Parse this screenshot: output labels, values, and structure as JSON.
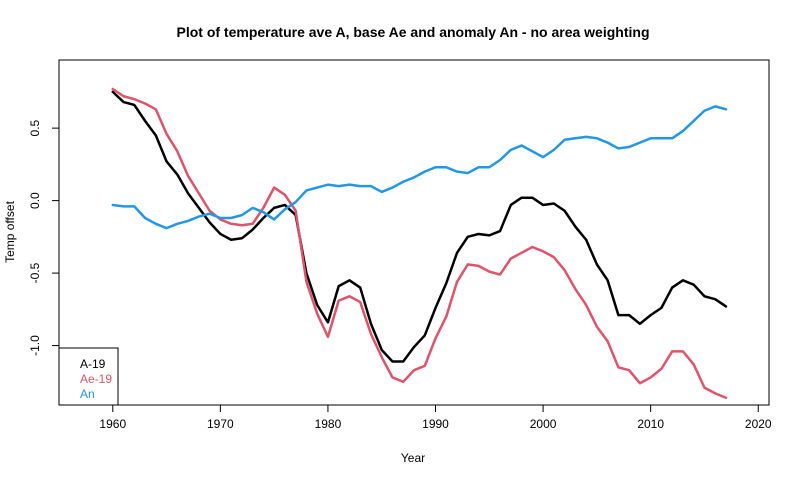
{
  "chart_data": {
    "type": "line",
    "title": "Plot of temperature ave A, base Ae and anomaly An - no area weighting",
    "xlabel": "Year",
    "ylabel": "Temp offset",
    "xlim": [
      1955,
      2021
    ],
    "ylim": [
      -1.41,
      0.97
    ],
    "x_ticks": [
      1960,
      1970,
      1980,
      1990,
      2000,
      2010,
      2020
    ],
    "y_ticks": [
      -1.0,
      -0.5,
      0.0,
      0.5
    ],
    "y_tick_labels": [
      "-1.0",
      "-0.5",
      "0.0",
      "0.5"
    ],
    "grid": false,
    "legend_position": "bottom-left",
    "x": [
      1960,
      1961,
      1962,
      1963,
      1964,
      1965,
      1966,
      1967,
      1968,
      1969,
      1970,
      1971,
      1972,
      1973,
      1974,
      1975,
      1976,
      1977,
      1978,
      1979,
      1980,
      1981,
      1982,
      1983,
      1984,
      1985,
      1986,
      1987,
      1988,
      1989,
      1990,
      1991,
      1992,
      1993,
      1994,
      1995,
      1996,
      1997,
      1998,
      1999,
      2000,
      2001,
      2002,
      2003,
      2004,
      2005,
      2006,
      2007,
      2008,
      2009,
      2010,
      2011,
      2012,
      2013,
      2014,
      2015,
      2016,
      2017
    ],
    "series": [
      {
        "name": "A-19",
        "color": "#000000",
        "values": [
          0.75,
          0.68,
          0.66,
          0.55,
          0.45,
          0.27,
          0.18,
          0.05,
          -0.05,
          -0.15,
          -0.23,
          -0.27,
          -0.26,
          -0.2,
          -0.12,
          -0.05,
          -0.03,
          -0.1,
          -0.5,
          -0.72,
          -0.84,
          -0.59,
          -0.55,
          -0.6,
          -0.85,
          -1.03,
          -1.11,
          -1.11,
          -1.01,
          -0.93,
          -0.74,
          -0.57,
          -0.36,
          -0.25,
          -0.23,
          -0.24,
          -0.21,
          -0.03,
          0.02,
          0.02,
          -0.03,
          -0.02,
          -0.07,
          -0.18,
          -0.27,
          -0.44,
          -0.55,
          -0.79,
          -0.79,
          -0.85,
          -0.79,
          -0.74,
          -0.6,
          -0.55,
          -0.58,
          -0.66,
          -0.68,
          -0.73
        ]
      },
      {
        "name": "Ae-19",
        "color": "#DF536B",
        "values": [
          0.77,
          0.72,
          0.7,
          0.67,
          0.63,
          0.46,
          0.34,
          0.17,
          0.05,
          -0.07,
          -0.13,
          -0.16,
          -0.17,
          -0.16,
          -0.05,
          0.09,
          0.04,
          -0.07,
          -0.56,
          -0.78,
          -0.94,
          -0.69,
          -0.66,
          -0.7,
          -0.92,
          -1.08,
          -1.22,
          -1.25,
          -1.17,
          -1.14,
          -0.95,
          -0.8,
          -0.56,
          -0.44,
          -0.45,
          -0.49,
          -0.51,
          -0.4,
          -0.36,
          -0.32,
          -0.35,
          -0.39,
          -0.48,
          -0.61,
          -0.72,
          -0.87,
          -0.97,
          -1.15,
          -1.17,
          -1.26,
          -1.22,
          -1.16,
          -1.04,
          -1.04,
          -1.13,
          -1.29,
          -1.33,
          -1.36
        ]
      },
      {
        "name": "An",
        "color": "#2297E6",
        "values": [
          -0.03,
          -0.04,
          -0.04,
          -0.12,
          -0.16,
          -0.19,
          -0.16,
          -0.14,
          -0.11,
          -0.09,
          -0.12,
          -0.12,
          -0.1,
          -0.05,
          -0.08,
          -0.13,
          -0.06,
          -0.01,
          0.07,
          0.09,
          0.11,
          0.1,
          0.11,
          0.1,
          0.1,
          0.06,
          0.09,
          0.13,
          0.16,
          0.2,
          0.23,
          0.23,
          0.2,
          0.19,
          0.23,
          0.23,
          0.28,
          0.35,
          0.38,
          0.34,
          0.3,
          0.35,
          0.42,
          0.43,
          0.44,
          0.43,
          0.4,
          0.36,
          0.37,
          0.4,
          0.43,
          0.43,
          0.43,
          0.48,
          0.55,
          0.62,
          0.65,
          0.63
        ]
      }
    ]
  }
}
